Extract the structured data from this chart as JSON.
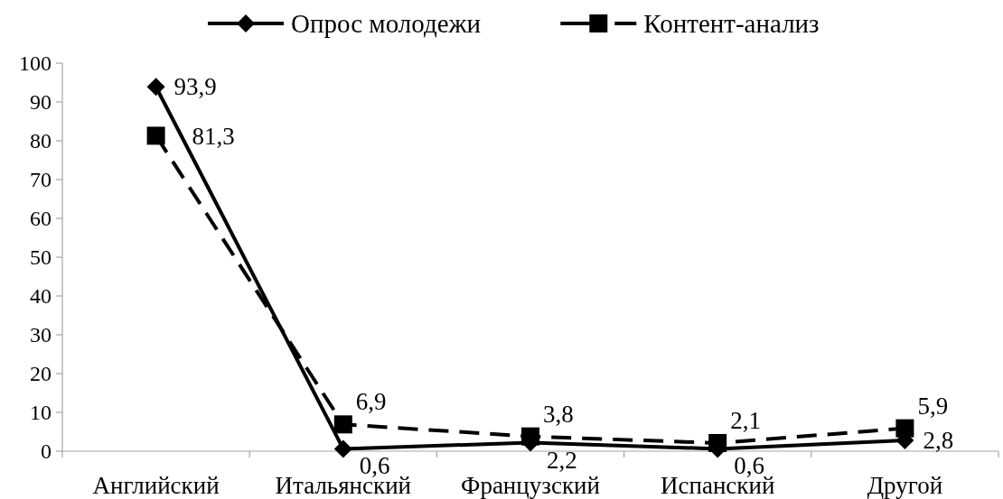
{
  "chart_data": {
    "type": "line",
    "categories": [
      "Английский",
      "Итальянский",
      "Французский",
      "Испанский",
      "Другой"
    ],
    "series": [
      {
        "name": "Опрос молодежи",
        "color": "#000000",
        "values": [
          93.9,
          0.6,
          2.2,
          0.6,
          2.8
        ],
        "value_labels": [
          "93,9",
          "0,6",
          "2,2",
          "0,6",
          "2,8"
        ],
        "marker": "diamond",
        "line_style": "solid"
      },
      {
        "name": "Контент-анализ",
        "color": "#000000",
        "values": [
          81.3,
          6.9,
          3.8,
          2.1,
          5.9
        ],
        "value_labels": [
          "81,3",
          "6,9",
          "3,8",
          "2,1",
          "5,9"
        ],
        "marker": "square",
        "line_style": "dashed"
      }
    ],
    "ylim": [
      0,
      100
    ],
    "yticks": [
      0,
      10,
      20,
      30,
      40,
      50,
      60,
      70,
      80,
      90,
      100
    ],
    "grid": false,
    "legend": "top"
  }
}
